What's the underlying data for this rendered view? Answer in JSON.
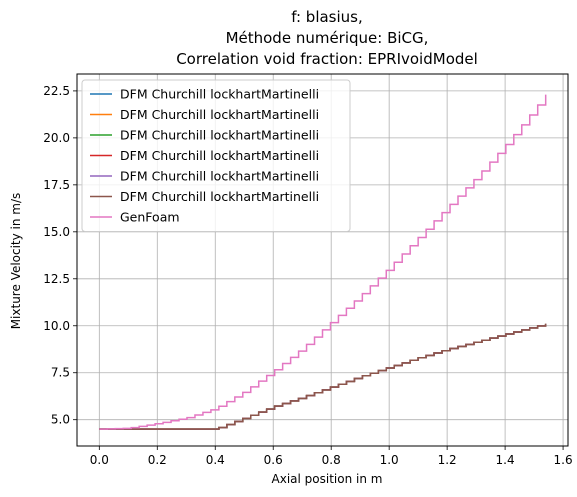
{
  "chart_data": {
    "type": "line",
    "title": [
      "f: blasius,",
      "Méthode numérique: BiCG,",
      "Correlation void fraction: EPRIvoidModel"
    ],
    "xlabel": "Axial position in m",
    "ylabel": "Mixture Velocity in m/s",
    "xlim": [
      -0.077,
      1.617
    ],
    "ylim": [
      3.6,
      23.4
    ],
    "xticks": [
      0.0,
      0.2,
      0.4,
      0.6,
      0.8,
      1.0,
      1.2,
      1.4,
      1.6
    ],
    "xtick_labels": [
      "0.0",
      "0.2",
      "0.4",
      "0.6",
      "0.8",
      "1.0",
      "1.2",
      "1.4",
      "1.6"
    ],
    "yticks": [
      5.0,
      7.5,
      10.0,
      12.5,
      15.0,
      17.5,
      20.0,
      22.5
    ],
    "ytick_labels": [
      "5.0",
      "7.5",
      "10.0",
      "12.5",
      "15.0",
      "17.5",
      "20.0",
      "22.5"
    ],
    "grid": true,
    "legend_position": "top-left",
    "step": true,
    "series": [
      {
        "name": "DFM Churchill lockhartMartinelli",
        "color": "#1f77b4",
        "x": [
          0.0,
          0.39,
          0.4,
          0.5,
          0.6,
          0.7,
          0.8,
          0.9,
          1.0,
          1.1,
          1.2,
          1.3,
          1.4,
          1.5,
          1.54
        ],
        "y": [
          4.5,
          4.5,
          4.5,
          5.1,
          5.7,
          6.2,
          6.75,
          7.3,
          7.8,
          8.3,
          8.75,
          9.15,
          9.55,
          9.95,
          10.1
        ]
      },
      {
        "name": "DFM Churchill lockhartMartinelli",
        "color": "#ff7f0e",
        "x": [
          0.0,
          0.39,
          0.4,
          0.5,
          0.6,
          0.7,
          0.8,
          0.9,
          1.0,
          1.1,
          1.2,
          1.3,
          1.4,
          1.5,
          1.54
        ],
        "y": [
          4.5,
          4.5,
          4.5,
          5.1,
          5.7,
          6.2,
          6.75,
          7.3,
          7.8,
          8.3,
          8.75,
          9.15,
          9.55,
          9.95,
          10.1
        ]
      },
      {
        "name": "DFM Churchill lockhartMartinelli",
        "color": "#2ca02c",
        "x": [
          0.0,
          0.39,
          0.4,
          0.5,
          0.6,
          0.7,
          0.8,
          0.9,
          1.0,
          1.1,
          1.2,
          1.3,
          1.4,
          1.5,
          1.54
        ],
        "y": [
          4.5,
          4.5,
          4.5,
          5.1,
          5.7,
          6.2,
          6.75,
          7.3,
          7.8,
          8.3,
          8.75,
          9.15,
          9.55,
          9.95,
          10.1
        ]
      },
      {
        "name": "DFM Churchill lockhartMartinelli",
        "color": "#d62728",
        "x": [
          0.0,
          0.39,
          0.4,
          0.5,
          0.6,
          0.7,
          0.8,
          0.9,
          1.0,
          1.1,
          1.2,
          1.3,
          1.4,
          1.5,
          1.54
        ],
        "y": [
          4.5,
          4.5,
          4.5,
          5.1,
          5.7,
          6.2,
          6.75,
          7.3,
          7.8,
          8.3,
          8.75,
          9.15,
          9.55,
          9.95,
          10.1
        ]
      },
      {
        "name": "DFM Churchill lockhartMartinelli",
        "color": "#9467bd",
        "x": [
          0.0,
          0.39,
          0.4,
          0.5,
          0.6,
          0.7,
          0.8,
          0.9,
          1.0,
          1.1,
          1.2,
          1.3,
          1.4,
          1.5,
          1.54
        ],
        "y": [
          4.5,
          4.5,
          4.5,
          5.1,
          5.7,
          6.2,
          6.75,
          7.3,
          7.8,
          8.3,
          8.75,
          9.15,
          9.55,
          9.95,
          10.1
        ]
      },
      {
        "name": "DFM Churchill lockhartMartinelli",
        "color": "#8c564b",
        "x": [
          0.0,
          0.39,
          0.4,
          0.5,
          0.6,
          0.7,
          0.8,
          0.9,
          1.0,
          1.1,
          1.2,
          1.3,
          1.4,
          1.5,
          1.54
        ],
        "y": [
          4.5,
          4.5,
          4.5,
          5.1,
          5.7,
          6.2,
          6.75,
          7.3,
          7.8,
          8.3,
          8.75,
          9.15,
          9.55,
          9.95,
          10.1
        ]
      },
      {
        "name": "GenFoam",
        "color": "#e377c2",
        "x": [
          0.0,
          0.1,
          0.2,
          0.3,
          0.4,
          0.5,
          0.6,
          0.7,
          0.8,
          0.9,
          1.0,
          1.1,
          1.2,
          1.3,
          1.4,
          1.5,
          1.54
        ],
        "y": [
          4.5,
          4.55,
          4.8,
          5.1,
          5.6,
          6.5,
          7.6,
          8.8,
          10.2,
          11.6,
          13.1,
          14.7,
          16.3,
          17.9,
          19.6,
          21.5,
          22.3
        ]
      }
    ]
  }
}
